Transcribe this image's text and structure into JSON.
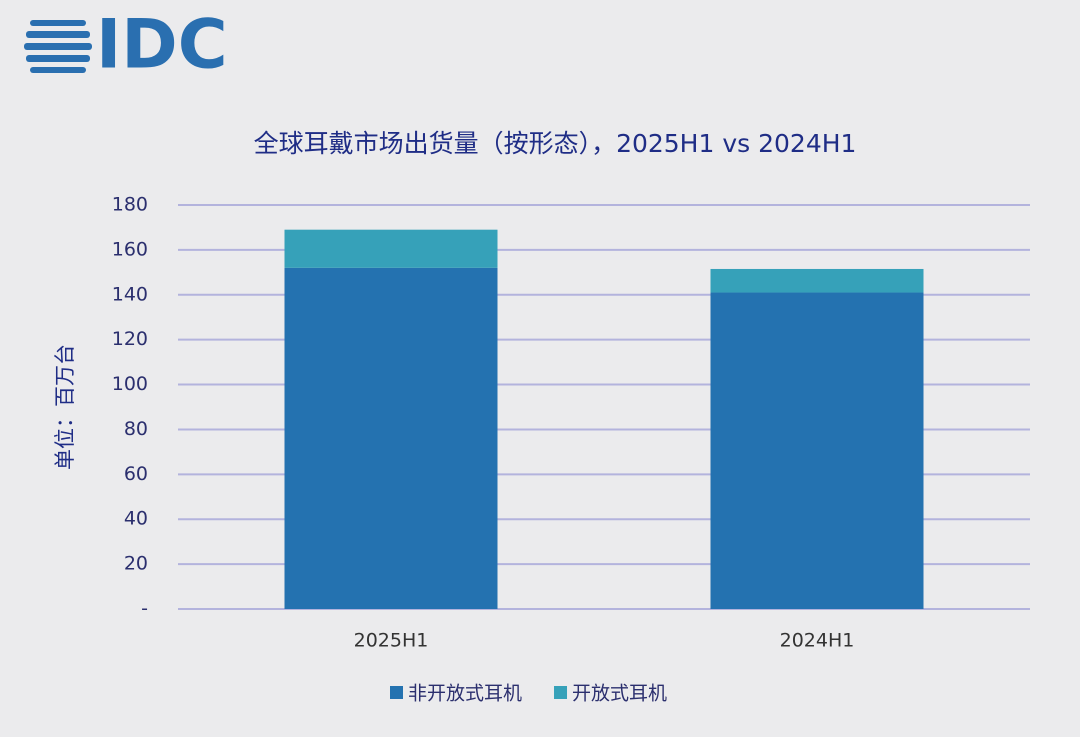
{
  "logo": "IDC",
  "chart_data": {
    "type": "stacked-bar",
    "title": "全球耳戴市场出货量（按形态），2025H1 vs 2024H1",
    "y_label": "单位：百万台",
    "categories": [
      "2025H1",
      "2024H1"
    ],
    "series": [
      {
        "name": "非开放式耳机",
        "color": "#2472b0",
        "values": [
          152,
          141
        ]
      },
      {
        "name": "开放式耳机",
        "color": "#36a1b9",
        "values": [
          17,
          10.5
        ]
      }
    ],
    "ylim": [
      0,
      180
    ],
    "yticks": [
      {
        "value": 0,
        "label": "-"
      },
      20,
      40,
      60,
      80,
      100,
      120,
      140,
      160,
      180
    ],
    "grid": true,
    "legend": "bottom"
  }
}
